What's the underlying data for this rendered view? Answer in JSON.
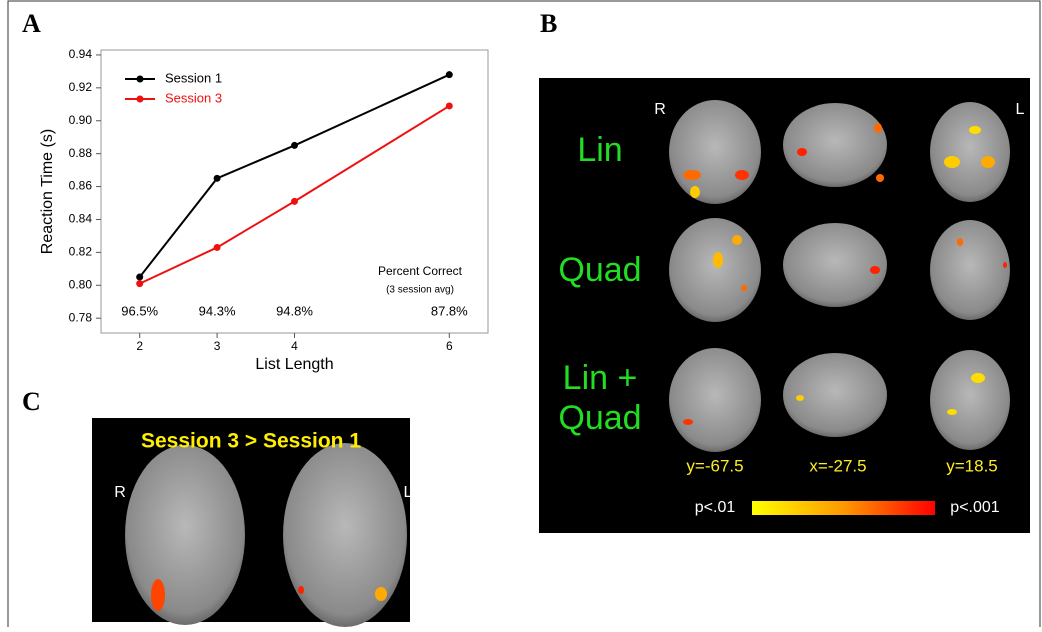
{
  "panels": {
    "a": "A",
    "b": "B",
    "c": "C"
  },
  "chart_data": {
    "type": "line",
    "x_label": "List Length",
    "y_label": "Reaction Time (s)",
    "x": [
      2,
      3,
      4,
      6
    ],
    "xlim": [
      1.5,
      6.5
    ],
    "xticks": [
      2,
      3,
      4,
      6
    ],
    "ylim": [
      0.771,
      0.943
    ],
    "yticks": [
      0.78,
      {
        "value": 0.8,
        "label": "0.80"
      },
      0.82,
      0.84,
      0.86,
      0.88,
      {
        "value": 0.9,
        "label": "0.90"
      },
      0.92,
      0.94
    ],
    "legend": "upper left",
    "series": [
      {
        "name": "Session 1",
        "color": "#000000",
        "values": [
          0.805,
          0.865,
          0.885,
          0.928
        ]
      },
      {
        "name": "Session 3",
        "color": "#ee1111",
        "values": [
          0.801,
          0.823,
          0.851,
          0.909
        ]
      }
    ],
    "annotation_title": "Percent Correct",
    "annotation_note": "(3 session avg)",
    "percent_correct": [
      "96.5%",
      "94.3%",
      "94.8%",
      "87.8%"
    ]
  },
  "panel_b": {
    "side_left": "R",
    "side_right": "L",
    "rows": [
      "Lin",
      "Quad",
      "Lin +",
      "Quad"
    ],
    "coordinates": [
      "y=-67.5",
      "x=-27.5",
      "y=18.5"
    ],
    "colorbar_min": "p<.01",
    "colorbar_max": "p<.001"
  },
  "panel_c": {
    "title": "Session 3 > Session 1",
    "side_left": "R",
    "side_right": "L"
  }
}
